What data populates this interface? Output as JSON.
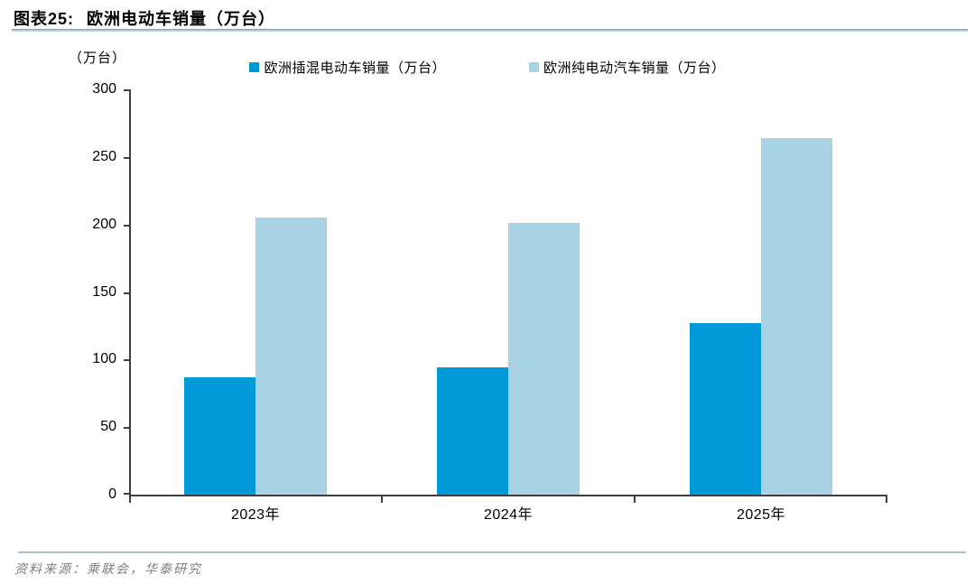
{
  "header": {
    "title_prefix": "图表25:",
    "title_text": "欧洲电动车销量（万台）"
  },
  "chart_data": {
    "type": "bar",
    "title": "欧洲电动车销量（万台）",
    "unit_label": "（万台）",
    "categories": [
      "2023年",
      "2024年",
      "2025年"
    ],
    "series": [
      {
        "name": "欧洲插混电动车销量（万台）",
        "color": "#0099d8",
        "values": [
          87,
          94,
          127
        ]
      },
      {
        "name": "欧洲纯电动汽车销量（万台）",
        "color": "#a9d3e4",
        "values": [
          205,
          201,
          264
        ]
      }
    ],
    "xlabel": "",
    "ylabel": "（万台）",
    "ylim": [
      0,
      300
    ],
    "yticks": [
      0,
      50,
      100,
      150,
      200,
      250,
      300
    ],
    "grid": false,
    "legend_position": "top",
    "axis_color": "#3f3f3f"
  },
  "footer": {
    "source_text": "资料来源：乘联会，华泰研究"
  }
}
